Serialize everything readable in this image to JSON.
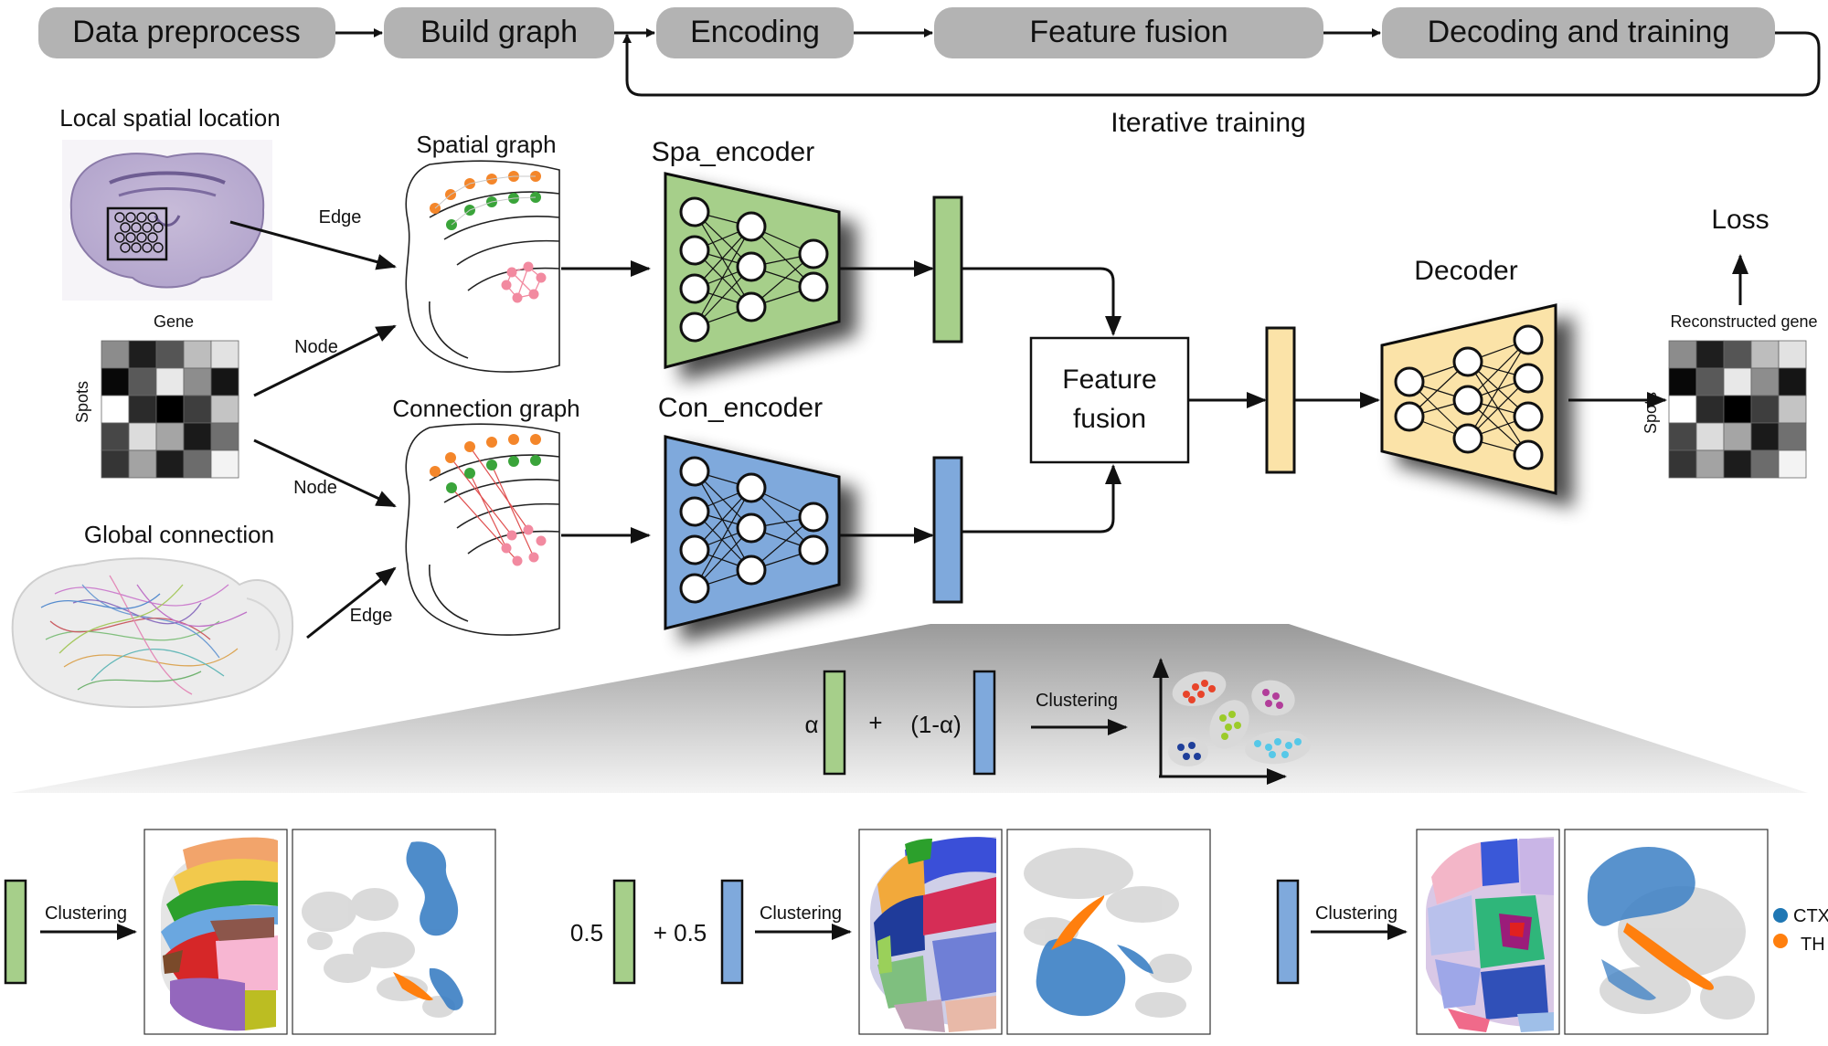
{
  "pipeline": {
    "steps": [
      "Data preprocess",
      "Build graph",
      "Encoding",
      "Feature fusion",
      "Decoding and training"
    ],
    "loop_label": "Iterative training"
  },
  "inputs": {
    "local_spatial_title": "Local spatial location",
    "gene_title": "Gene",
    "spots_label": "Spots",
    "global_connection_title": "Global connection",
    "edge_label": "Edge",
    "node_label": "Node"
  },
  "graphs": {
    "spatial_title": "Spatial graph",
    "connection_title": "Connection graph"
  },
  "encoders": {
    "spa_title": "Spa_encoder",
    "con_title": "Con_encoder"
  },
  "fusion": {
    "line1": "Feature",
    "line2": "fusion"
  },
  "decoder": {
    "title": "Decoder",
    "loss_label": "Loss",
    "reconstructed_title": "Reconstructed gene",
    "spots_label": "Spots"
  },
  "weighting": {
    "alpha_label": "α",
    "plus_label": "+",
    "one_minus_alpha_label": "(1-α)",
    "clustering_label": "Clustering"
  },
  "results": {
    "clustering_label": "Clustering",
    "weight_left": "0.5",
    "weight_right": "+ 0.5",
    "legend": [
      {
        "name": "CTX",
        "color": "#1f77b4"
      },
      {
        "name": "TH",
        "color": "#ff7f0e"
      }
    ]
  },
  "colors": {
    "pill_fill": "#b3b3b3",
    "spa_green": "#a6cf8a",
    "con_blue": "#7fa9dc",
    "decoder_yellow": "#fbe3a8",
    "node_orange": "#f4862a",
    "node_green": "#3aa43a",
    "node_pink": "#f28aa0"
  }
}
